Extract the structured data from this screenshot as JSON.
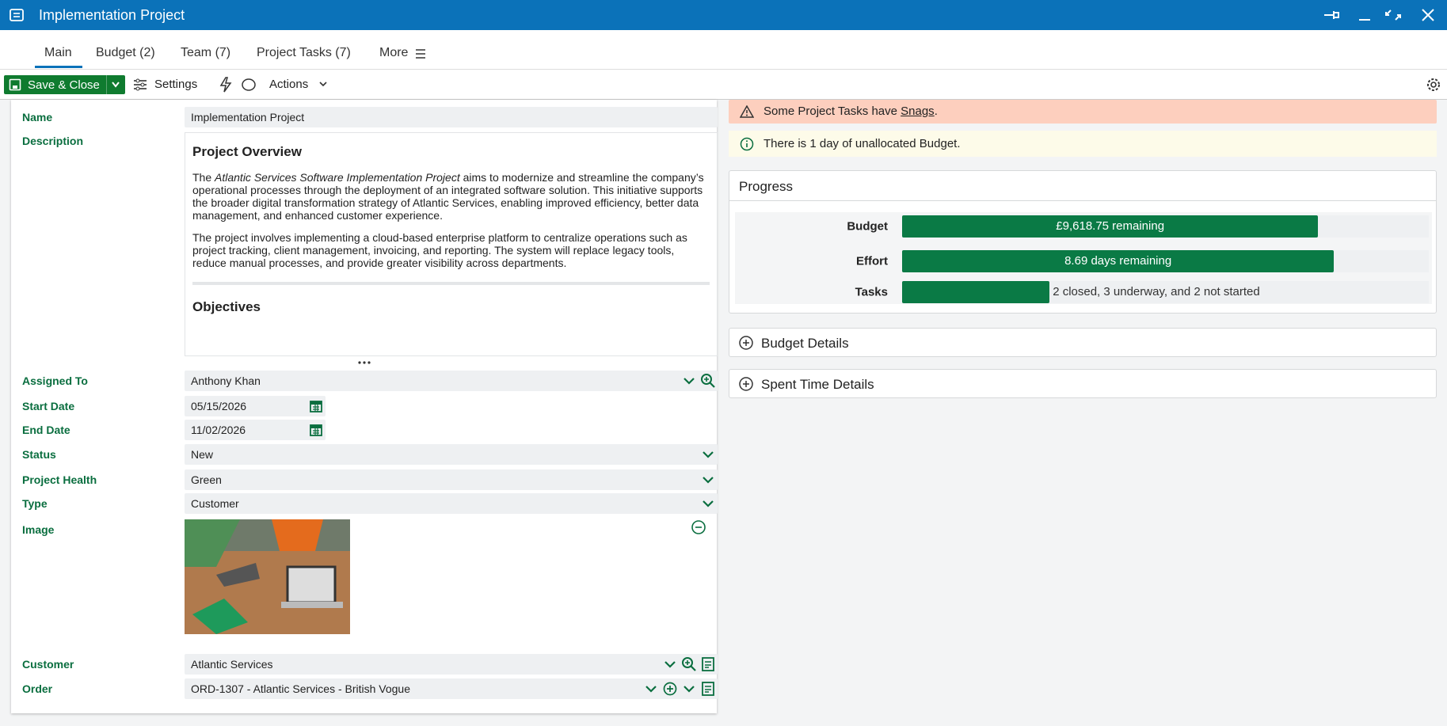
{
  "window": {
    "title": "Implementation Project"
  },
  "tabs": [
    "Main",
    "Budget (2)",
    "Team (7)",
    "Project Tasks (7)",
    "More"
  ],
  "toolbar": {
    "save": "Save & Close",
    "settings": "Settings",
    "actions": "Actions"
  },
  "form": {
    "name": {
      "label": "Name",
      "value": "Implementation Project"
    },
    "description": {
      "label": "Description",
      "heading": "Project Overview",
      "paragraph1": {
        "before": "The ",
        "italic": "Atlantic Services Software Implementation Project",
        "after": " aims to modernize and streamline the company’s operational processes through the deployment of an integrated software solution. This initiative supports the broader digital transformation strategy of Atlantic Services, enabling improved efficiency, better data management, and enhanced customer experience."
      },
      "paragraph2": "The project involves implementing a cloud-based enterprise platform to centralize operations such as project tracking, client management, invoicing, and reporting. The system will replace legacy tools, reduce manual processes, and provide greater visibility across departments.",
      "heading2": "Objectives"
    },
    "fields": [
      {
        "label": "Assigned To",
        "value": "Anthony Khan"
      },
      {
        "label": "Start Date",
        "value": "05/15/2026"
      },
      {
        "label": "End Date",
        "value": "11/02/2026"
      },
      {
        "label": "Status",
        "value": "New"
      },
      {
        "label": "Project Health",
        "value": "Green"
      },
      {
        "label": "Type",
        "value": "Customer"
      }
    ],
    "image": {
      "label": "Image"
    },
    "fields2": [
      {
        "label": "Customer",
        "value": "Atlantic Services"
      },
      {
        "label": "Order",
        "value": "ORD-1307 - Atlantic Services - British Vogue"
      }
    ]
  },
  "alerts": {
    "snag": {
      "before": "Some Project Tasks have ",
      "link": "Snags",
      "after": "."
    },
    "info": "There is 1 day of unallocated Budget."
  },
  "progress": {
    "title": "Progress",
    "rows": [
      {
        "label": "Budget",
        "text": "£9,618.75 remaining",
        "fill": 79
      },
      {
        "label": "Effort",
        "text": "8.69 days remaining",
        "fill": 82
      },
      {
        "label": "Tasks",
        "text": "2 closed, 3 underway, and 2 not started",
        "fill": 28
      }
    ]
  },
  "sections": [
    "Budget Details",
    "Spent Time Details"
  ]
}
